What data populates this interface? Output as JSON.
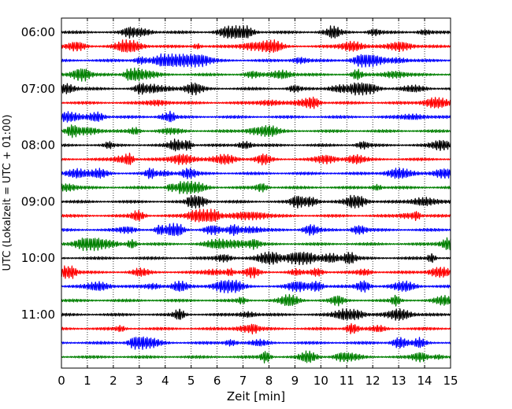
{
  "chart_data": {
    "type": "line",
    "xlabel": "Zeit  [min]",
    "ylabel": "UTC (Lokalzeit = UTC + 01:00)",
    "xlim": [
      0,
      15
    ],
    "x_ticks": [
      0,
      1,
      2,
      3,
      4,
      5,
      6,
      7,
      8,
      9,
      10,
      11,
      12,
      13,
      14,
      15
    ],
    "y_tick_labels": [
      "06:00",
      "07:00",
      "08:00",
      "09:00",
      "10:00",
      "11:00"
    ],
    "y_tick_rows": [
      0,
      4,
      8,
      12,
      16,
      20
    ],
    "row_minutes": 15,
    "start_time": "06:00",
    "row_count": 24,
    "color_cycle": [
      "#000000",
      "#ff0000",
      "#0000ff",
      "#008000"
    ],
    "grid": "vertical dotted"
  }
}
